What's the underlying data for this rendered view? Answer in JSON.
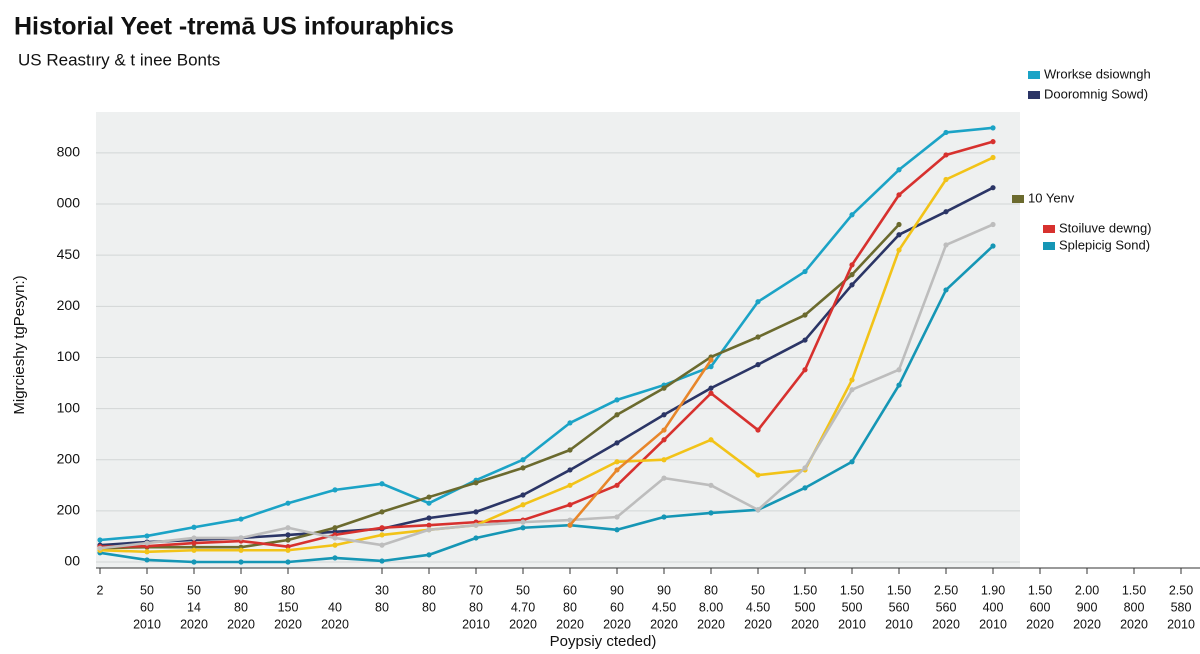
{
  "chart_data": {
    "type": "line",
    "title": "Historial Yeet -tremā US  infouraphics",
    "subtitle": "US Reastıry & t inee Bonts",
    "y_label": "Migrcieshy tgPesyn:)",
    "x_label": "Poypsiy cteded)",
    "x_label_rows": [
      [
        "2",
        "50",
        "50",
        "90",
        "80",
        null,
        "30",
        "80",
        "70",
        "50",
        "60",
        "90",
        "90",
        "80",
        "50",
        "1.50",
        "1.50",
        "1.50",
        "2.50",
        "1.90",
        "1.50",
        "2.00",
        "1.50",
        "2.50"
      ],
      [
        null,
        "60",
        "14",
        "80",
        "150",
        "40",
        "80",
        "80",
        "80",
        "4.70",
        "80",
        "60",
        "4.50",
        "8.00",
        "4.50",
        "500",
        "500",
        "560",
        "560",
        "400",
        "600",
        "900",
        "800",
        "580"
      ],
      [
        null,
        "2010",
        "2020",
        "2020",
        "2020",
        "2020",
        null,
        null,
        "2010",
        "2020",
        "2020",
        "2020",
        "2020",
        "2020",
        "2020",
        "2020",
        "2010",
        "2010",
        "2020",
        "2010",
        "2020",
        "2020",
        "2020",
        "2010"
      ]
    ],
    "ylim": [
      0,
      8.8
    ],
    "yticks": [
      {
        "value": 0,
        "label": "00"
      },
      {
        "value": 1,
        "label": "200"
      },
      {
        "value": 2,
        "label": "200"
      },
      {
        "value": 3,
        "label": "100"
      },
      {
        "value": 4,
        "label": "100"
      },
      {
        "value": 5,
        "label": "200"
      },
      {
        "value": 6,
        "label": "450"
      },
      {
        "value": 7,
        "label": "000"
      },
      {
        "value": 8,
        "label": "800"
      }
    ],
    "grid": true,
    "series": [
      {
        "name": "Wrorkse dsiowngh",
        "color": "#1ba3c6",
        "values": [
          0.43,
          0.51,
          0.68,
          0.84,
          1.15,
          1.41,
          1.53,
          1.15,
          1.6,
          2.0,
          2.72,
          3.17,
          3.46,
          3.82,
          5.09,
          5.68,
          6.79,
          7.67,
          8.4,
          8.49
        ]
      },
      {
        "name": "Dooromnig Sowd)",
        "color": "#2b3566",
        "values": [
          0.33,
          0.39,
          0.43,
          0.47,
          0.53,
          0.59,
          0.65,
          0.86,
          0.98,
          1.31,
          1.8,
          2.33,
          2.88,
          3.4,
          3.86,
          4.34,
          5.42,
          6.4,
          6.85,
          7.32
        ]
      },
      {
        "name": "10 Yenv",
        "color": "#6b6a2e",
        "values": [
          0.27,
          0.29,
          0.29,
          0.29,
          0.43,
          0.67,
          0.98,
          1.27,
          1.55,
          1.84,
          2.19,
          2.88,
          3.4,
          4.01,
          4.4,
          4.83,
          5.62,
          6.6,
          null,
          null
        ]
      },
      {
        "name": "Stoiluve dewng)",
        "color": "#d7312e",
        "values": [
          0.3,
          0.31,
          0.37,
          0.41,
          0.3,
          0.53,
          0.67,
          0.72,
          0.78,
          0.82,
          1.12,
          1.5,
          2.39,
          3.3,
          2.58,
          3.76,
          5.81,
          7.18,
          7.96,
          8.22
        ]
      },
      {
        "name": "Splepicig Sond)",
        "color": "#1596b5",
        "values": [
          0.18,
          0.04,
          0,
          0,
          0,
          0.08,
          0.02,
          0.14,
          0.47,
          0.67,
          0.72,
          0.63,
          0.88,
          0.96,
          1.02,
          1.45,
          1.96,
          3.46,
          5.32,
          6.18
        ]
      },
      {
        "color": "#f2c318",
        "values": [
          0.23,
          0.2,
          0.23,
          0.23,
          0.23,
          0.33,
          0.53,
          0.63,
          0.72,
          1.12,
          1.5,
          1.96,
          2.0,
          2.39,
          1.7,
          1.8,
          3.56,
          6.1,
          7.48,
          7.91
        ]
      },
      {
        "color": "#bdbdbd",
        "values": [
          0.27,
          0.37,
          0.47,
          0.47,
          0.67,
          0.47,
          0.33,
          0.63,
          0.72,
          0.78,
          0.82,
          0.88,
          1.64,
          1.5,
          1.02,
          1.84,
          3.37,
          3.76,
          6.2,
          6.6
        ]
      },
      {
        "color": "#e8862a",
        "values": [
          null,
          null,
          null,
          null,
          null,
          null,
          null,
          null,
          null,
          null,
          0.72,
          1.8,
          2.58,
          3.95,
          null,
          null,
          null,
          null,
          null,
          null
        ]
      }
    ]
  }
}
